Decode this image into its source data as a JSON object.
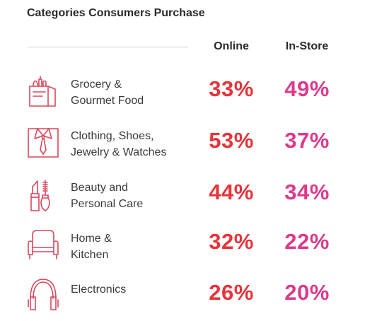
{
  "chart_data": {
    "type": "table",
    "title": "Categories Consumers Purchase",
    "columns": [
      "Online",
      "In-Store"
    ],
    "rows": [
      {
        "category": "Grocery &\nGourmet Food",
        "icon": "grocery-bag-icon",
        "online": "33%",
        "in_store": "49%"
      },
      {
        "category": "Clothing, Shoes,\nJewelry & Watches",
        "icon": "shirt-tie-icon",
        "online": "53%",
        "in_store": "37%"
      },
      {
        "category": "Beauty and\nPersonal Care",
        "icon": "lipstick-mascara-icon",
        "online": "44%",
        "in_store": "34%"
      },
      {
        "category": "Home &\nKitchen",
        "icon": "armchair-icon",
        "online": "32%",
        "in_store": "22%"
      },
      {
        "category": "Electronics",
        "icon": "headphones-icon",
        "online": "26%",
        "in_store": "20%"
      }
    ]
  },
  "colors": {
    "online": "#e8333a",
    "in_store": "#dd3a8c",
    "icon_stroke": "#d9475d"
  }
}
